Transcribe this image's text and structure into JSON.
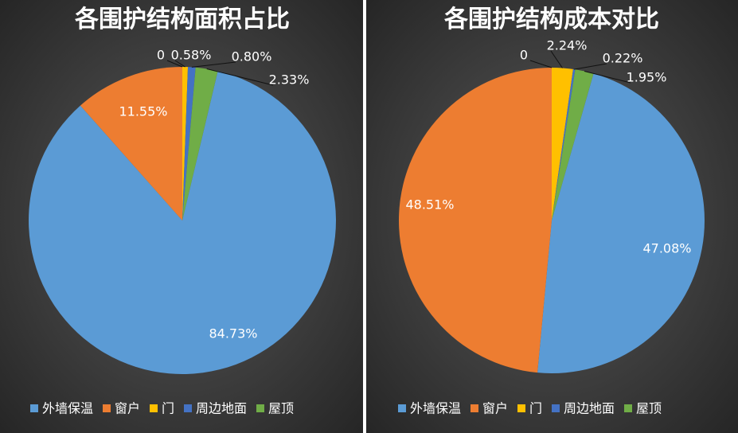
{
  "chart_data": [
    {
      "type": "pie",
      "title": "各围护结构面积占比",
      "categories": [
        "外墙保温",
        "窗户",
        null,
        "门",
        "周边地面",
        "屋顶"
      ],
      "values": [
        84.73,
        11.55,
        0,
        0.58,
        0.8,
        2.33
      ],
      "value_labels": [
        "84.73%",
        "11.55%",
        "0",
        "0.58%",
        "0.80%",
        "2.33%"
      ],
      "colors": [
        "#5b9bd5",
        "#ed7d31",
        "#a5a5a5",
        "#ffc000",
        "#4472c4",
        "#70ad47"
      ],
      "legend": "bottom"
    },
    {
      "type": "pie",
      "title": "各围护结构成本对比",
      "categories": [
        "外墙保温",
        "窗户",
        null,
        "门",
        "周边地面",
        "屋顶"
      ],
      "values": [
        47.08,
        48.51,
        0,
        2.24,
        0.22,
        1.95
      ],
      "value_labels": [
        "47.08%",
        "48.51%",
        "0",
        "2.24%",
        "0.22%",
        "1.95%"
      ],
      "colors": [
        "#5b9bd5",
        "#ed7d31",
        "#a5a5a5",
        "#ffc000",
        "#4472c4",
        "#70ad47"
      ],
      "legend": "bottom"
    }
  ]
}
